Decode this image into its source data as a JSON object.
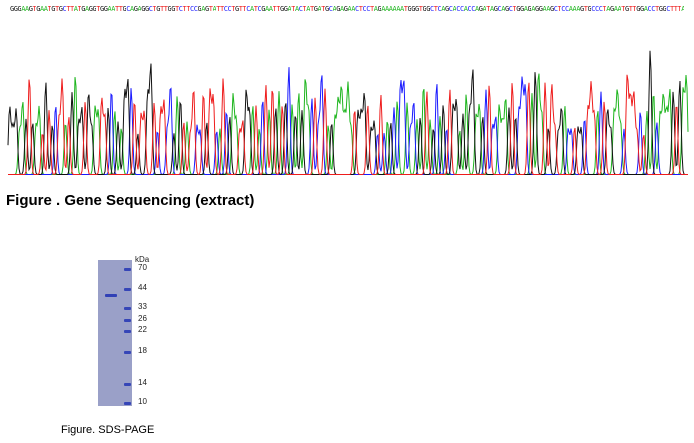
{
  "sequencing": {
    "caption": "Figure . Gene Sequencing (extract)",
    "sequence": "GGGAAGTGAATGTGCTTATGAGGTGGAATTGCAGAGGCTGTTGGTCTTCCGAGTATTCCTGTTCATCGAATTGGATACTATGATGCAGAGAACTCCTAGAAAAAATGGGTGGCTCAGCACCACCAGATAGCAGCTGGAGAGGAAGCTCCAAAGTGCCCTAGAATGTTGGACCTGGCTTTACTGGAAACTTTTCTAGACAAAAGTGAA",
    "base_colors": {
      "A": "#1db51d",
      "C": "#1a1aff",
      "G": "#111111",
      "T": "#ee1c1c"
    }
  },
  "sds_page": {
    "caption": "Figure. SDS-PAGE",
    "unit_label": "kDa",
    "markers": [
      "70",
      "44",
      "33",
      "26",
      "22",
      "18",
      "14",
      "10"
    ],
    "lane_color": "#9aa0c8",
    "band_color": "#2a3bb5"
  }
}
